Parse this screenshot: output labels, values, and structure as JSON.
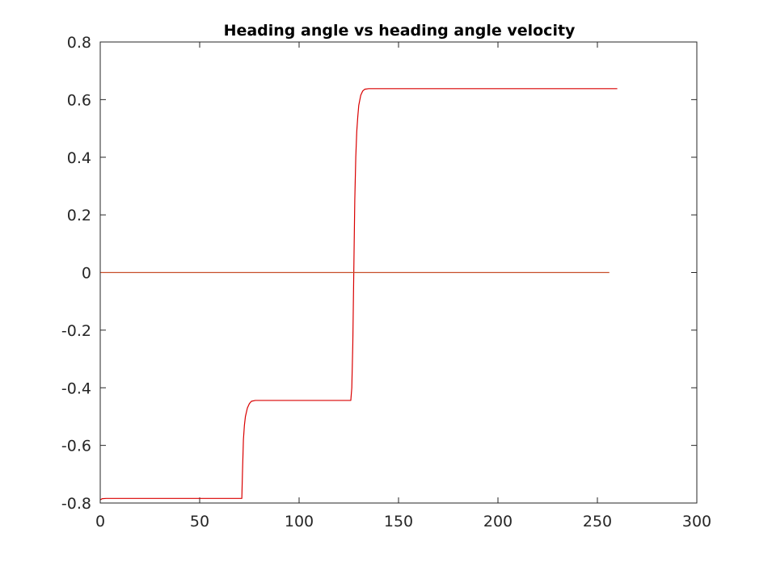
{
  "chart_data": {
    "type": "line",
    "title": "Heading angle vs heading angle velocity",
    "xlabel": "",
    "ylabel": "",
    "xlim": [
      0,
      300
    ],
    "ylim": [
      -0.8,
      0.8
    ],
    "x_ticks": [
      0,
      50,
      100,
      150,
      200,
      250,
      300
    ],
    "y_ticks": [
      -0.8,
      -0.6,
      -0.4,
      -0.2,
      0,
      0.2,
      0.4,
      0.6,
      0.8
    ],
    "x_tick_labels": [
      "0",
      "50",
      "100",
      "150",
      "200",
      "250",
      "300"
    ],
    "y_tick_labels": [
      "-0.8",
      "-0.6",
      "-0.4",
      "-0.2",
      "0",
      "0.2",
      "0.4",
      "0.6",
      "0.8"
    ],
    "grid": false,
    "legend": "none",
    "series": [
      {
        "color": "#d90000",
        "points": [
          [
            0,
            -0.789
          ],
          [
            1,
            -0.785
          ],
          [
            3,
            -0.784
          ],
          [
            10,
            -0.784
          ],
          [
            30,
            -0.784
          ],
          [
            50,
            -0.784
          ],
          [
            70,
            -0.784
          ],
          [
            71.2,
            -0.784
          ],
          [
            71.5,
            -0.7
          ],
          [
            72,
            -0.58
          ],
          [
            72.5,
            -0.53
          ],
          [
            73,
            -0.5
          ],
          [
            74,
            -0.47
          ],
          [
            75,
            -0.455
          ],
          [
            76,
            -0.447
          ],
          [
            78,
            -0.444
          ],
          [
            90,
            -0.444
          ],
          [
            110,
            -0.444
          ],
          [
            126,
            -0.444
          ],
          [
            126.5,
            -0.4
          ],
          [
            127,
            -0.25
          ],
          [
            127.5,
            0.0
          ],
          [
            128,
            0.25
          ],
          [
            128.5,
            0.4
          ],
          [
            129,
            0.49
          ],
          [
            129.5,
            0.54
          ],
          [
            130,
            0.58
          ],
          [
            131,
            0.615
          ],
          [
            132,
            0.63
          ],
          [
            133,
            0.636
          ],
          [
            135,
            0.638
          ],
          [
            150,
            0.638
          ],
          [
            200,
            0.638
          ],
          [
            260,
            0.638
          ]
        ]
      },
      {
        "color": "#c84f2a",
        "points": [
          [
            0,
            0
          ],
          [
            256,
            0
          ]
        ]
      }
    ]
  }
}
